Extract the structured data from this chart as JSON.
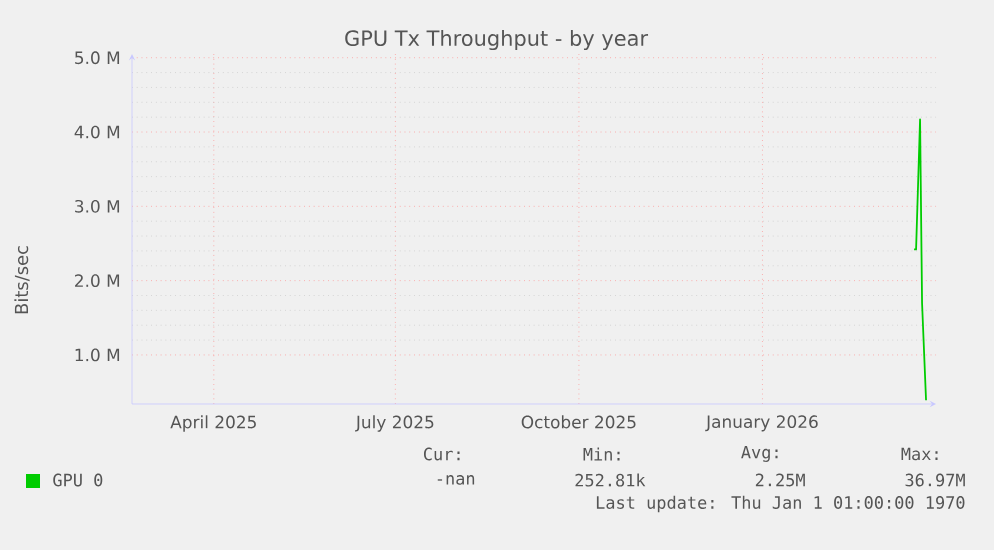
{
  "chart_data": {
    "type": "line",
    "title": "GPU Tx Throughput - by year",
    "ylabel": "Bits/sec",
    "x": [
      "2026-03-18",
      "2026-03-19",
      "2026-03-21",
      "2026-03-22",
      "2026-03-24"
    ],
    "series": [
      {
        "name": "GPU 0",
        "color": "#00cc00",
        "values": [
          2420000,
          2420000,
          4170000,
          1700000,
          390000
        ]
      }
    ],
    "xlim": [
      "2025-02-19",
      "2026-03-29"
    ],
    "xticks": [
      {
        "value": "2025-04-01",
        "label": "April 2025"
      },
      {
        "value": "2025-07-01",
        "label": "July 2025"
      },
      {
        "value": "2025-10-01",
        "label": "October 2025"
      },
      {
        "value": "2026-01-01",
        "label": "January 2026"
      }
    ],
    "ylim": [
      340000,
      5050000
    ],
    "yticks": [
      {
        "value": 1000000,
        "label": "1.0 M"
      },
      {
        "value": 2000000,
        "label": "2.0 M"
      },
      {
        "value": 3000000,
        "label": "3.0 M"
      },
      {
        "value": 4000000,
        "label": "4.0 M"
      },
      {
        "value": 5000000,
        "label": "5.0 M"
      }
    ],
    "grid": true,
    "legend": "bottom left",
    "line_style": "solid",
    "annotations": [
      "Cur:",
      "Min:",
      "Avg:",
      "Max:",
      "-nan",
      "252.81k",
      "2.25M",
      "36.97M",
      "Last update: Thu Jan  1 01:00:00 1970"
    ]
  }
}
